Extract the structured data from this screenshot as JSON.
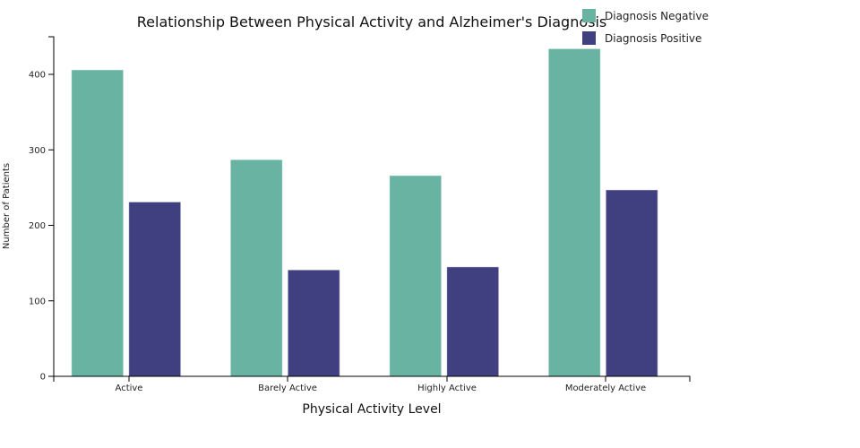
{
  "chart_data": {
    "type": "bar",
    "title": "Relationship Between Physical Activity and Alzheimer's Diagnosis",
    "xlabel": "Physical Activity Level",
    "ylabel": "Number of Patients",
    "categories": [
      "Active",
      "Barely Active",
      "Highly Active",
      "Moderately Active"
    ],
    "series": [
      {
        "name": "Diagnosis Negative",
        "color": "#69b3a2",
        "values": [
          406,
          287,
          266,
          434
        ]
      },
      {
        "name": "Diagnosis Positive",
        "color": "#404080",
        "values": [
          231,
          141,
          145,
          247
        ]
      }
    ],
    "ylim": [
      0,
      450
    ],
    "yticks": [
      0,
      100,
      200,
      300,
      400
    ],
    "grid": false,
    "legend": "top-right"
  }
}
